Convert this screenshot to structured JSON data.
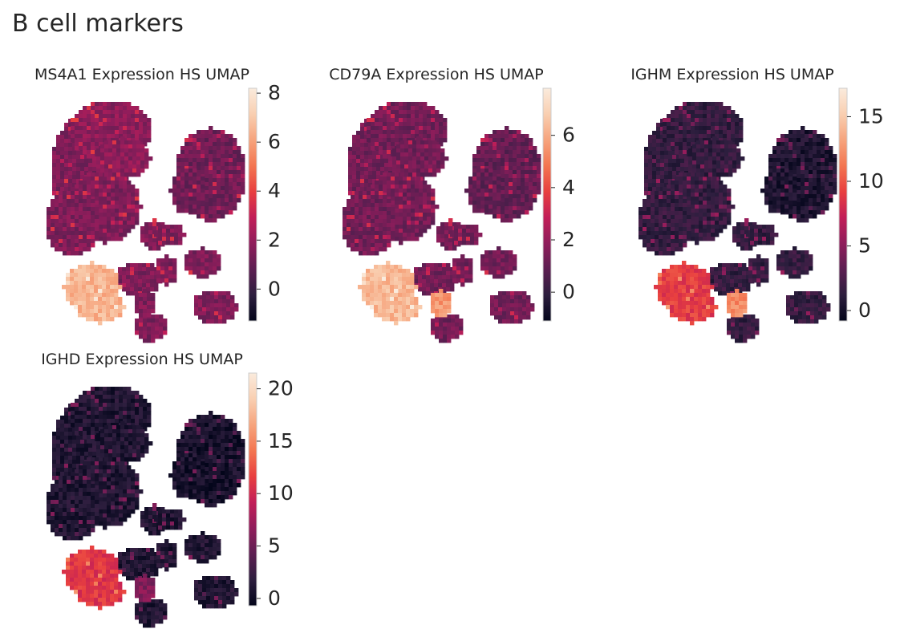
{
  "figure": {
    "title": "B cell markers"
  },
  "colormap": {
    "name": "rocket",
    "stops": [
      "#03051a",
      "#2d1e3e",
      "#5c1e51",
      "#8f1d5b",
      "#c21e58",
      "#e83f3f",
      "#f37651",
      "#f6a47d",
      "#f9cfb1",
      "#faebdd"
    ]
  },
  "chart_data": [
    {
      "type": "scatter",
      "title": "MS4A1 Expression HS UMAP",
      "subtitle": "",
      "xlabel": "",
      "ylabel": "",
      "grid": false,
      "colorbar": {
        "range": [
          -1.3,
          8.2
        ],
        "ticks": [
          0,
          2,
          4,
          6,
          8
        ],
        "tick_labels": [
          "0",
          "2",
          "4",
          "6",
          "8"
        ]
      },
      "cluster_expression": {
        "large_blob": 1.5,
        "top_blob": 1.8,
        "top_right_blob": 1.2,
        "middle_clusters": 1.5,
        "bottom_left_cluster": 6.5,
        "bottom_small_cluster": 1.5
      }
    },
    {
      "type": "scatter",
      "title": "CD79A Expression HS UMAP",
      "subtitle": "",
      "xlabel": "",
      "ylabel": "",
      "grid": false,
      "colorbar": {
        "range": [
          -1.1,
          7.8
        ],
        "ticks": [
          0,
          2,
          4,
          6
        ],
        "tick_labels": [
          "0",
          "2",
          "4",
          "6"
        ]
      },
      "cluster_expression": {
        "large_blob": 1.3,
        "top_blob": 1.3,
        "top_right_blob": 1.0,
        "middle_clusters": 1.3,
        "bottom_left_cluster": 6.3,
        "bottom_small_cluster": 5.5
      }
    },
    {
      "type": "scatter",
      "title": "IGHM Expression HS UMAP",
      "subtitle": "",
      "xlabel": "",
      "ylabel": "",
      "grid": false,
      "colorbar": {
        "range": [
          -0.8,
          17.2
        ],
        "ticks": [
          0,
          5,
          10,
          15
        ],
        "tick_labels": [
          "0",
          "5",
          "10",
          "15"
        ]
      },
      "cluster_expression": {
        "large_blob": 1.5,
        "top_blob": 1.5,
        "top_right_blob": 0.5,
        "middle_clusters": 1.5,
        "bottom_left_cluster": 9.0,
        "bottom_small_cluster": 12.0
      }
    },
    {
      "type": "scatter",
      "title": "IGHD Expression HS UMAP",
      "subtitle": "",
      "xlabel": "",
      "ylabel": "",
      "grid": false,
      "colorbar": {
        "range": [
          -0.7,
          21.5
        ],
        "ticks": [
          0,
          5,
          10,
          15,
          20
        ],
        "tick_labels": [
          "0",
          "5",
          "10",
          "15",
          "20"
        ]
      },
      "cluster_expression": {
        "large_blob": 1.0,
        "top_blob": 1.0,
        "top_right_blob": 0.5,
        "middle_clusters": 1.0,
        "bottom_left_cluster": 11.0,
        "bottom_small_cluster": 6.0
      }
    }
  ]
}
